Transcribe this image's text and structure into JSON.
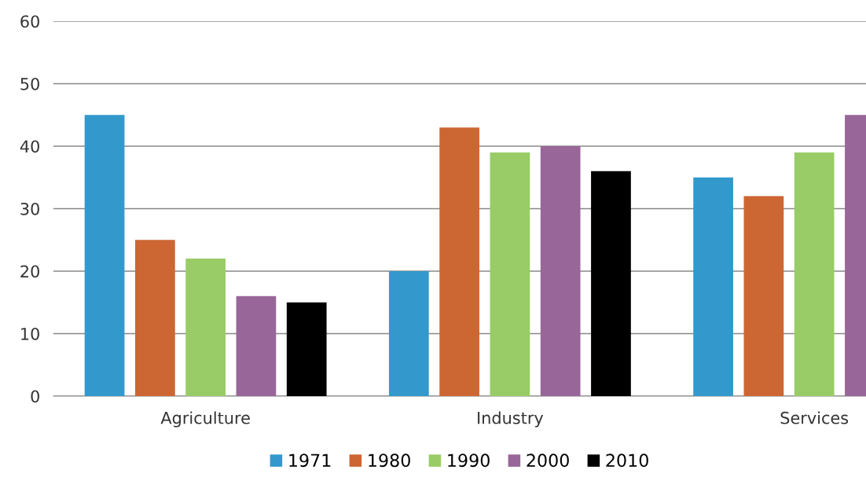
{
  "chart_data": {
    "type": "bar",
    "categories": [
      "Agriculture",
      "Industry",
      "Services"
    ],
    "series": [
      {
        "name": "1971",
        "color": "#3399cc",
        "values": [
          45,
          20,
          35
        ]
      },
      {
        "name": "1980",
        "color": "#cc6633",
        "values": [
          25,
          43,
          32
        ]
      },
      {
        "name": "1990",
        "color": "#99cc66",
        "values": [
          22,
          39,
          39
        ]
      },
      {
        "name": "2000",
        "color": "#996699",
        "values": [
          16,
          40,
          45
        ]
      },
      {
        "name": "2010",
        "color": "#000000",
        "values": [
          15,
          36,
          null
        ]
      }
    ],
    "ylim": [
      0,
      60
    ],
    "yticks": [
      0,
      10,
      20,
      30,
      40,
      50,
      60
    ],
    "grid": "y",
    "legend": "bottom"
  }
}
